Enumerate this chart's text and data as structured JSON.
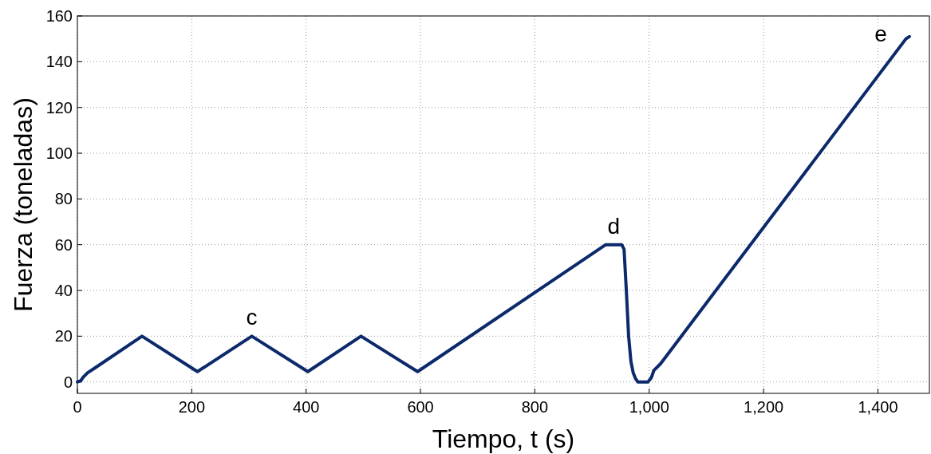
{
  "chart_data": {
    "type": "line",
    "xlabel": "Tiempo, t (s)",
    "ylabel": "Fuerza (toneladas)",
    "x": [
      0,
      6,
      10,
      18,
      30,
      113,
      210,
      305,
      403,
      496,
      595,
      924,
      952,
      956,
      960,
      964,
      968,
      972,
      976,
      980,
      998,
      1004,
      1008,
      1020,
      1449,
      1455
    ],
    "series": [
      {
        "color": "#0c2a6b",
        "values": [
          0,
          0.5,
          2,
          4,
          6,
          20,
          4.5,
          20,
          4.5,
          20,
          4.5,
          60,
          60,
          58,
          40,
          20,
          9,
          4,
          1.5,
          0,
          0,
          2,
          5,
          8,
          150,
          151
        ]
      }
    ],
    "xlim": [
      0,
      1490
    ],
    "ylim": [
      -5,
      160
    ],
    "xticks": [
      0,
      200,
      400,
      600,
      800,
      {
        "value": 1000,
        "label": "1,000"
      },
      {
        "value": 1200,
        "label": "1,200"
      },
      {
        "value": 1400,
        "label": "1,400"
      }
    ],
    "yticks": [
      0,
      20,
      40,
      60,
      80,
      100,
      120,
      140,
      160
    ],
    "grid": true,
    "marker": "none",
    "line_style": "solid",
    "annotations": [
      {
        "text": "c",
        "x": 305,
        "y": 20
      },
      {
        "text": "d",
        "x": 938,
        "y": 60
      },
      {
        "text": "e",
        "x": 1455,
        "y": 151
      }
    ]
  }
}
